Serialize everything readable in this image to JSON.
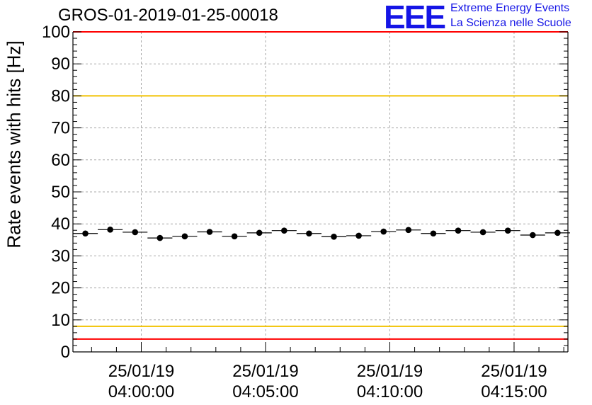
{
  "header": {
    "title": "GROS-01-2019-01-25-00018"
  },
  "logo": {
    "mark": "EEE",
    "line1": "Extreme Energy Events",
    "line2": "La Scienza nelle Scuole"
  },
  "chart_data": {
    "type": "scatter",
    "title": "GROS-01-2019-01-25-00018",
    "xlabel": "",
    "ylabel": "Rate events with hits [Hz]",
    "ylim": [
      0,
      100
    ],
    "xlim": [
      "25/01/19 03:57:15",
      "25/01/19 04:17:10"
    ],
    "grid": true,
    "y_ticks": [
      0,
      10,
      20,
      30,
      40,
      50,
      60,
      70,
      80,
      90,
      100
    ],
    "x_ticks": [
      {
        "x": "25/01/19 04:00:00",
        "date": "25/01/19",
        "time": "04:00:00"
      },
      {
        "x": "25/01/19 04:05:00",
        "date": "25/01/19",
        "time": "04:05:00"
      },
      {
        "x": "25/01/19 04:10:00",
        "date": "25/01/19",
        "time": "04:10:00"
      },
      {
        "x": "25/01/19 04:15:00",
        "date": "25/01/19",
        "time": "04:15:00"
      }
    ],
    "bin_width_seconds": 60,
    "points": [
      {
        "x": "25/01/19 03:57:45",
        "y": 37.0
      },
      {
        "x": "25/01/19 03:58:45",
        "y": 38.2
      },
      {
        "x": "25/01/19 03:59:45",
        "y": 37.4
      },
      {
        "x": "25/01/19 04:00:45",
        "y": 35.6
      },
      {
        "x": "25/01/19 04:01:45",
        "y": 36.1
      },
      {
        "x": "25/01/19 04:02:45",
        "y": 37.5
      },
      {
        "x": "25/01/19 04:03:45",
        "y": 36.1
      },
      {
        "x": "25/01/19 04:04:45",
        "y": 37.2
      },
      {
        "x": "25/01/19 04:05:45",
        "y": 37.9
      },
      {
        "x": "25/01/19 04:06:45",
        "y": 37.0
      },
      {
        "x": "25/01/19 04:07:45",
        "y": 36.0
      },
      {
        "x": "25/01/19 04:08:45",
        "y": 36.3
      },
      {
        "x": "25/01/19 04:09:45",
        "y": 37.6
      },
      {
        "x": "25/01/19 04:10:45",
        "y": 38.1
      },
      {
        "x": "25/01/19 04:11:45",
        "y": 37.0
      },
      {
        "x": "25/01/19 04:12:45",
        "y": 37.9
      },
      {
        "x": "25/01/19 04:13:45",
        "y": 37.4
      },
      {
        "x": "25/01/19 04:14:45",
        "y": 37.9
      },
      {
        "x": "25/01/19 04:15:45",
        "y": 36.5
      },
      {
        "x": "25/01/19 04:16:45",
        "y": 37.2
      }
    ],
    "reference_lines": [
      {
        "y": 100,
        "color": "#ff0000"
      },
      {
        "y": 80,
        "color": "#f2c200"
      },
      {
        "y": 8,
        "color": "#f2c200"
      },
      {
        "y": 4,
        "color": "#ff0000"
      }
    ]
  }
}
